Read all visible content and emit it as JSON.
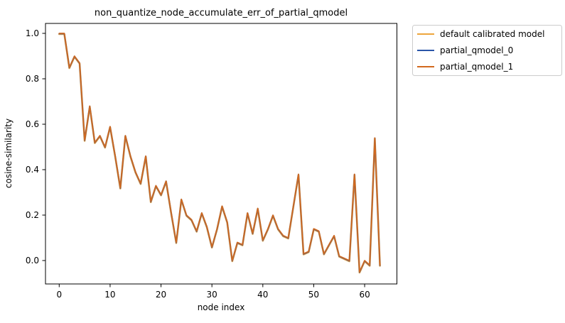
{
  "window": {
    "background": "#ffffff",
    "frame_color": "#000000",
    "legend_border_color": "#cccccc"
  },
  "chart_data": {
    "type": "line",
    "title": "non_quantize_node_accumulate_err_of_partial_qmodel",
    "xlabel": "node index",
    "ylabel": "cosine-similarity",
    "legend_position": "upper right, outside plot",
    "grid": false,
    "xlim": [
      -3.15,
      66.15
    ],
    "ylim": [
      -0.104,
      1.053
    ],
    "xticks": [
      0,
      10,
      20,
      30,
      40,
      50,
      60
    ],
    "yticks": [
      "1.0",
      "0.8",
      "0.6",
      "0.4",
      "0.2",
      "0.0"
    ],
    "note": "three series overlap almost exactly; partial_qmodel_1 drawn on top",
    "x": [
      0,
      1,
      2,
      3,
      4,
      5,
      6,
      7,
      8,
      9,
      10,
      11,
      12,
      13,
      14,
      15,
      16,
      17,
      18,
      19,
      20,
      21,
      22,
      23,
      24,
      25,
      26,
      27,
      28,
      29,
      30,
      31,
      32,
      33,
      34,
      35,
      36,
      37,
      38,
      39,
      40,
      41,
      42,
      43,
      44,
      45,
      46,
      47,
      48,
      49,
      50,
      51,
      52,
      53,
      54,
      55,
      56,
      57,
      58,
      59,
      60,
      61,
      62,
      63
    ],
    "series": [
      {
        "name": "default calibrated model",
        "color": "#eda53c",
        "values": [
          1.0,
          1.0,
          0.85,
          0.9,
          0.87,
          0.53,
          0.68,
          0.52,
          0.55,
          0.5,
          0.59,
          0.46,
          0.32,
          0.55,
          0.46,
          0.39,
          0.34,
          0.46,
          0.26,
          0.33,
          0.29,
          0.35,
          0.21,
          0.08,
          0.27,
          0.2,
          0.18,
          0.13,
          0.21,
          0.15,
          0.06,
          0.14,
          0.24,
          0.17,
          0.0,
          0.08,
          0.07,
          0.21,
          0.12,
          0.23,
          0.09,
          0.14,
          0.2,
          0.14,
          0.11,
          0.1,
          0.24,
          0.38,
          0.03,
          0.04,
          0.14,
          0.13,
          0.03,
          0.07,
          0.11,
          0.02,
          0.01,
          0.0,
          0.38,
          -0.05,
          0.0,
          -0.02,
          0.54,
          -0.02
        ]
      },
      {
        "name": "partial_qmodel_0",
        "color": "#2a56a8",
        "values": [
          1.0,
          1.0,
          0.85,
          0.9,
          0.87,
          0.53,
          0.68,
          0.52,
          0.55,
          0.5,
          0.59,
          0.46,
          0.32,
          0.55,
          0.46,
          0.39,
          0.34,
          0.46,
          0.26,
          0.33,
          0.29,
          0.35,
          0.21,
          0.08,
          0.27,
          0.2,
          0.18,
          0.13,
          0.21,
          0.15,
          0.06,
          0.14,
          0.24,
          0.17,
          0.0,
          0.08,
          0.07,
          0.21,
          0.12,
          0.23,
          0.09,
          0.14,
          0.2,
          0.14,
          0.11,
          0.1,
          0.24,
          0.38,
          0.03,
          0.04,
          0.14,
          0.13,
          0.03,
          0.07,
          0.11,
          0.02,
          0.01,
          0.0,
          0.38,
          -0.05,
          0.0,
          -0.02,
          0.54,
          -0.02
        ]
      },
      {
        "name": "partial_qmodel_1",
        "color": "#d2691e",
        "values": [
          1.0,
          1.0,
          0.85,
          0.9,
          0.87,
          0.53,
          0.68,
          0.52,
          0.55,
          0.5,
          0.59,
          0.46,
          0.32,
          0.55,
          0.46,
          0.39,
          0.34,
          0.46,
          0.26,
          0.33,
          0.29,
          0.35,
          0.21,
          0.08,
          0.27,
          0.2,
          0.18,
          0.13,
          0.21,
          0.15,
          0.06,
          0.14,
          0.24,
          0.17,
          0.0,
          0.08,
          0.07,
          0.21,
          0.12,
          0.23,
          0.09,
          0.14,
          0.2,
          0.14,
          0.11,
          0.1,
          0.24,
          0.38,
          0.03,
          0.04,
          0.14,
          0.13,
          0.03,
          0.07,
          0.11,
          0.02,
          0.01,
          0.0,
          0.38,
          -0.05,
          0.0,
          -0.02,
          0.54,
          -0.02
        ]
      }
    ]
  }
}
